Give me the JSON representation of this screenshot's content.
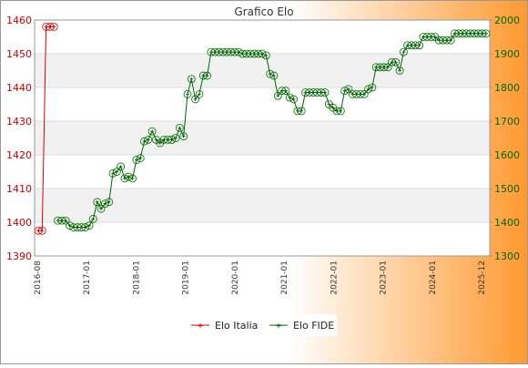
{
  "chart_data": {
    "type": "line",
    "title": "Grafico Elo",
    "background_gradient": [
      "#ffffff",
      "#ff9930"
    ],
    "left_axis": {
      "ylim": [
        1390,
        1460
      ],
      "ticks": [
        1390,
        1400,
        1410,
        1420,
        1430,
        1440,
        1450,
        1460
      ],
      "color": "#cc0000"
    },
    "right_axis": {
      "ylim": [
        1300,
        2000
      ],
      "ticks": [
        1300,
        1400,
        1500,
        1600,
        1700,
        1800,
        1900,
        2000
      ],
      "color": "#006600"
    },
    "x_tick_labels": [
      "2016-08",
      "2017-01",
      "2018-01",
      "2019-01",
      "2020-01",
      "2021-01",
      "2022-01",
      "2023-01",
      "2024-01",
      "2025-12"
    ],
    "legend_position": "bottom-center",
    "series": [
      {
        "name": "Elo Italia",
        "color": "#dd0000",
        "axis": "left",
        "x_index": [
          0,
          1,
          2,
          3,
          4
        ],
        "values": [
          1397.5,
          1397.5,
          1458,
          1458,
          1458
        ]
      },
      {
        "name": "Elo FIDE",
        "color": "#006600",
        "axis": "right",
        "x_index": [
          5,
          6,
          7,
          8,
          9,
          10,
          11,
          12,
          13,
          14,
          15,
          16,
          17,
          18,
          19,
          20,
          21,
          22,
          23,
          24,
          25,
          26,
          27,
          28,
          29,
          30,
          31,
          32,
          33,
          34,
          35,
          36,
          37,
          38,
          39,
          40,
          41,
          42,
          43,
          44,
          45,
          46,
          47,
          48,
          49,
          50,
          51,
          52,
          53,
          54,
          55,
          56,
          57,
          58,
          59,
          60,
          61,
          62,
          63,
          64,
          65,
          66,
          67,
          68,
          69,
          70,
          71,
          72,
          73,
          74,
          75,
          76,
          77,
          78,
          79,
          80,
          81,
          82,
          83,
          84,
          85,
          86,
          87,
          88,
          89,
          90,
          91,
          92,
          93,
          94,
          95,
          96,
          97,
          98,
          99,
          100,
          101,
          102,
          103,
          104,
          105,
          106,
          107,
          108,
          109,
          110,
          111,
          112,
          113,
          114
        ],
        "values": [
          1405,
          1405,
          1405,
          1390,
          1385,
          1385,
          1385,
          1385,
          1390,
          1410,
          1460,
          1440,
          1455,
          1460,
          1545,
          1550,
          1565,
          1530,
          1535,
          1530,
          1585,
          1590,
          1640,
          1645,
          1670,
          1645,
          1635,
          1645,
          1645,
          1645,
          1650,
          1680,
          1655,
          1780,
          1825,
          1765,
          1780,
          1835,
          1835,
          1905,
          1905,
          1905,
          1905,
          1905,
          1905,
          1905,
          1905,
          1900,
          1900,
          1900,
          1900,
          1900,
          1900,
          1895,
          1840,
          1835,
          1775,
          1790,
          1790,
          1770,
          1765,
          1730,
          1730,
          1785,
          1785,
          1785,
          1785,
          1785,
          1785,
          1750,
          1740,
          1730,
          1730,
          1790,
          1795,
          1780,
          1780,
          1780,
          1780,
          1795,
          1800,
          1860,
          1860,
          1860,
          1860,
          1875,
          1875,
          1850,
          1905,
          1925,
          1925,
          1925,
          1925,
          1950,
          1950,
          1950,
          1950,
          1940,
          1940,
          1940,
          1940,
          1960,
          1960,
          1960,
          1960,
          1960,
          1960,
          1960,
          1960,
          1960
        ]
      }
    ]
  }
}
